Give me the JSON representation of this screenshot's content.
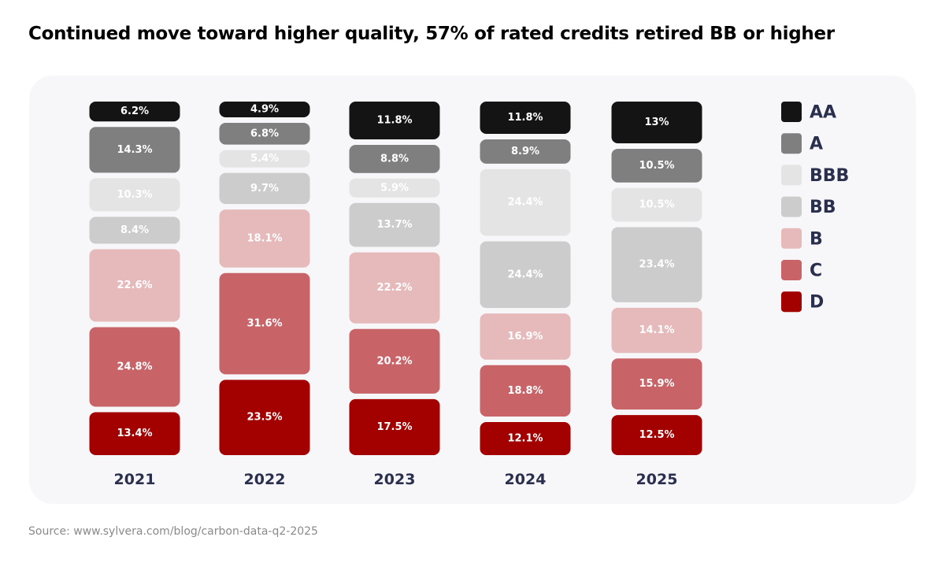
{
  "title": "Continued move toward higher quality, 57% of rated credits retired BB or higher",
  "source": "Source: www.sylvera.com/blog/carbon-data-q2-2025",
  "chart_data": {
    "type": "bar",
    "stacked": true,
    "title": "Continued move toward higher quality, 57% of rated credits retired BB or higher",
    "categories": [
      "2021",
      "2022",
      "2023",
      "2024",
      "2025"
    ],
    "legend_position": "right",
    "grid": false,
    "series": [
      {
        "name": "AA",
        "color": "#141414",
        "values": [
          6.2,
          4.9,
          11.8,
          11.8,
          13
        ],
        "labels": [
          "6.2%",
          "4.9%",
          "11.8%",
          "11.8%",
          "13%"
        ]
      },
      {
        "name": "A",
        "color": "#7f7f7f",
        "values": [
          14.3,
          6.8,
          8.8,
          8.9,
          10.5
        ],
        "labels": [
          "14.3%",
          "6.8%",
          "8.8%",
          "8.9%",
          "10.5%"
        ]
      },
      {
        "name": "BBB",
        "color": "#e4e4e4",
        "values": [
          10.3,
          5.4,
          5.9,
          24.4,
          10.5
        ],
        "labels": [
          "10.3%",
          "5.4%",
          "5.9%",
          "24.4%",
          "10.5%"
        ]
      },
      {
        "name": "BB",
        "color": "#cccccc",
        "values": [
          8.4,
          9.7,
          13.7,
          24.4,
          23.4
        ],
        "labels": [
          "8.4%",
          "9.7%",
          "13.7%",
          "24.4%",
          "23.4%"
        ]
      },
      {
        "name": "B",
        "color": "#e6b9bb",
        "values": [
          22.6,
          18.1,
          22.2,
          16.9,
          14.1
        ],
        "labels": [
          "22.6%",
          "18.1%",
          "22.2%",
          "16.9%",
          "14.1%"
        ]
      },
      {
        "name": "C",
        "color": "#c86368",
        "values": [
          24.8,
          31.6,
          20.2,
          18.8,
          15.9
        ],
        "labels": [
          "24.8%",
          "31.6%",
          "20.2%",
          "18.8%",
          "15.9%"
        ]
      },
      {
        "name": "D",
        "color": "#a30000",
        "values": [
          13.4,
          23.5,
          17.5,
          12.1,
          12.5
        ],
        "labels": [
          "13.4%",
          "23.5%",
          "17.5%",
          "12.1%",
          "12.5%"
        ]
      }
    ]
  }
}
